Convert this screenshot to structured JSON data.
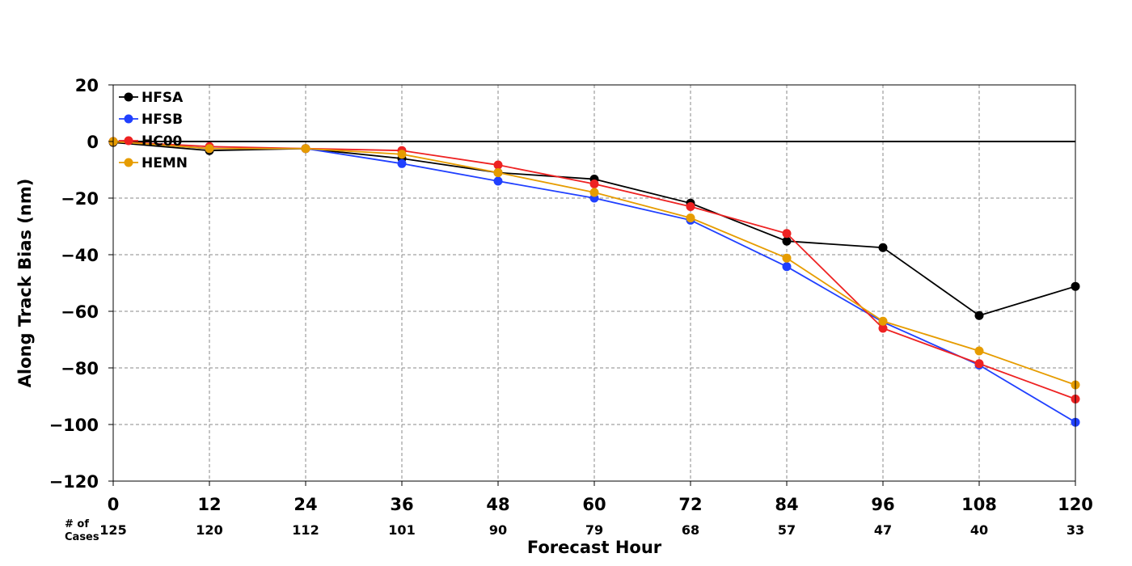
{
  "chart_data": {
    "type": "line",
    "ylabel": "Along Track Bias (nm)",
    "xlabel": "Forecast Hour",
    "x": [
      0,
      12,
      24,
      36,
      48,
      60,
      72,
      84,
      96,
      108,
      120
    ],
    "xlim": [
      0,
      120
    ],
    "ylim": [
      -120,
      20
    ],
    "yticks": [
      20,
      0,
      -20,
      -40,
      -60,
      -80,
      -100,
      -120
    ],
    "ytick_labels": [
      "20",
      "0",
      "−20",
      "−40",
      "−60",
      "−80",
      "−100",
      "−120"
    ],
    "xtick_labels": [
      "0",
      "12",
      "24",
      "36",
      "48",
      "60",
      "72",
      "84",
      "96",
      "108",
      "120"
    ],
    "grid": true,
    "zero_line": true,
    "legend_position": "top-left",
    "cases_label": "# of\nCases",
    "cases_label_lines": [
      "# of",
      "Cases"
    ],
    "cases": [
      "125",
      "120",
      "112",
      "101",
      "90",
      "79",
      "68",
      "57",
      "47",
      "40",
      "33"
    ],
    "series": [
      {
        "name": "HFSA",
        "color": "#000000",
        "values": [
          -0.3,
          -3.2,
          -2.5,
          -6,
          -11,
          -13.3,
          -21.8,
          -35.2,
          -37.5,
          -61.5,
          -51.2
        ]
      },
      {
        "name": "HFSB",
        "color": "#2040ff",
        "values": [
          0,
          -2.5,
          -2.5,
          -7.8,
          -14,
          -20,
          -27.8,
          -44.2,
          -63.8,
          -79,
          -99.2
        ]
      },
      {
        "name": "HC00",
        "color": "#ee2222",
        "values": [
          0,
          -1.8,
          -2.5,
          -3.2,
          -8.3,
          -15,
          -23,
          -32.5,
          -66,
          -78.5,
          -91
        ]
      },
      {
        "name": "HEMN",
        "color": "#e69c00",
        "values": [
          0,
          -2.5,
          -2.5,
          -4.5,
          -11,
          -18,
          -27,
          -41.2,
          -63.5,
          -74,
          -86
        ]
      }
    ]
  }
}
